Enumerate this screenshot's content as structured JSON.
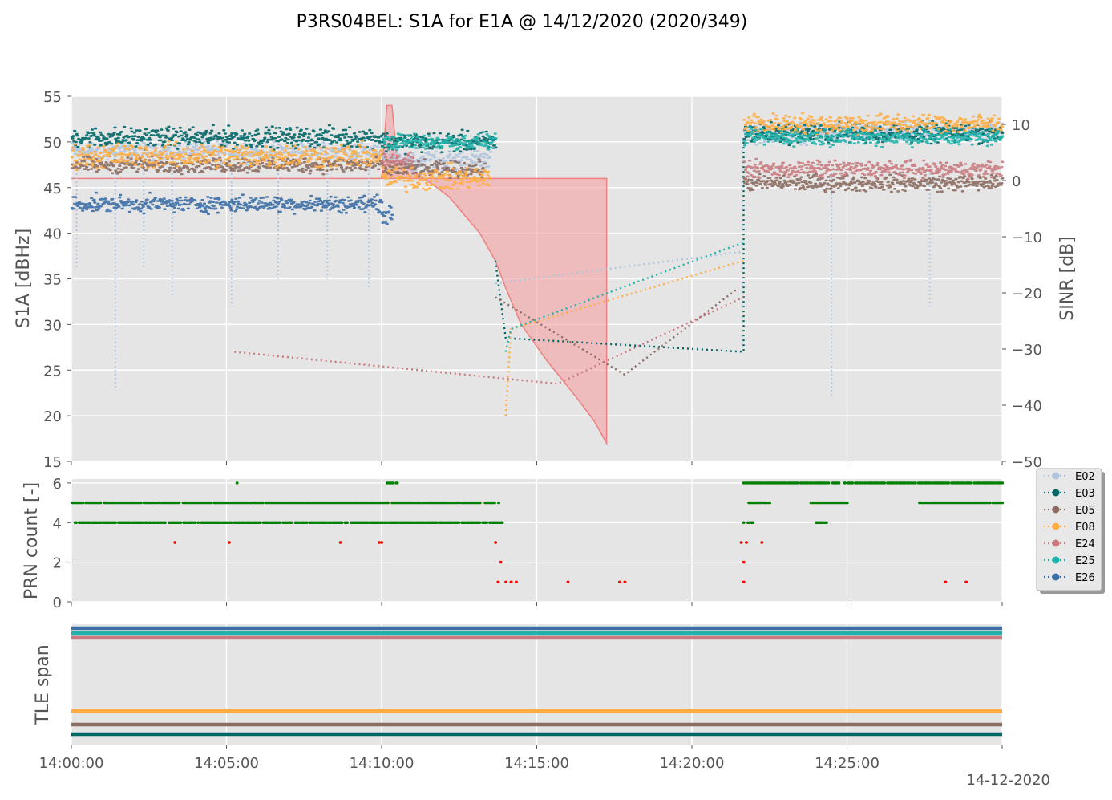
{
  "title": "P3RS04BEL: S1A for E1A @ 14/12/2020 (2020/349)",
  "date_label": "14-12-2020",
  "colors": {
    "panel_bg": "#e5e5e5",
    "grid": "#ffffff",
    "axis_text": "#555555",
    "sinr_fill": "#f4a0a0",
    "sinr_edge": "#f08080",
    "prn_count_good": "#008000",
    "prn_count_bad": "#ff0000"
  },
  "legend": [
    {
      "name": "E02",
      "color": "#b0c4de"
    },
    {
      "name": "E03",
      "color": "#006666"
    },
    {
      "name": "E05",
      "color": "#8c6d62"
    },
    {
      "name": "E08",
      "color": "#ffad42"
    },
    {
      "name": "E24",
      "color": "#c97a7e"
    },
    {
      "name": "E25",
      "color": "#20b2aa"
    },
    {
      "name": "E26",
      "color": "#3c6ea5"
    }
  ],
  "chart_data": [
    {
      "type": "scatter",
      "ylabel": "S1A [dBHz]",
      "y2label": "SINR [dB]",
      "xlim": [
        "14:00:00",
        "14:30:00"
      ],
      "ylim": [
        15,
        55
      ],
      "y2lim": [
        -50,
        15
      ],
      "yticks": [
        "15",
        "20",
        "25",
        "30",
        "35",
        "40",
        "45",
        "50",
        "55"
      ],
      "y2ticks": [
        "−50",
        "−40",
        "−30",
        "−20",
        "−10",
        "0",
        "10"
      ],
      "grid": true,
      "series": [
        {
          "name": "E02",
          "segments": [
            {
              "t0": "14:00:00",
              "t1": "14:10:00",
              "mean": 49,
              "noise": 1.0
            },
            {
              "t0": "14:10:00",
              "t1": "14:13:30",
              "mean": 48,
              "noise": 1.0
            },
            {
              "t0": "14:21:40",
              "t1": "14:30:00",
              "mean": 51,
              "noise": 1.0
            }
          ],
          "dips": [
            {
              "t": "14:00:10",
              "min": 36
            },
            {
              "t": "14:01:25",
              "min": 23
            },
            {
              "t": "14:02:20",
              "min": 36
            },
            {
              "t": "14:03:15",
              "min": 33
            },
            {
              "t": "14:05:10",
              "min": 32
            },
            {
              "t": "14:06:40",
              "min": 35
            },
            {
              "t": "14:08:15",
              "min": 35
            },
            {
              "t": "14:09:35",
              "min": 34
            },
            {
              "t": "14:24:30",
              "min": 22
            },
            {
              "t": "14:27:40",
              "min": 32
            }
          ],
          "tail": [
            [
              "14:13:40",
              34.5
            ],
            [
              "14:21:40",
              38
            ]
          ]
        },
        {
          "name": "E03",
          "segments": [
            {
              "t0": "14:00:00",
              "t1": "14:10:00",
              "mean": 50.5,
              "noise": 1.0
            },
            {
              "t0": "14:10:00",
              "t1": "14:13:40",
              "mean": 50,
              "noise": 1.0
            },
            {
              "t0": "14:21:40",
              "t1": "14:30:00",
              "mean": 51,
              "noise": 1.0
            }
          ],
          "tail": [
            [
              "14:13:40",
              37
            ],
            [
              "14:14:00",
              28.5
            ],
            [
              "14:21:40",
              27
            ],
            [
              "14:21:40",
              50
            ]
          ]
        },
        {
          "name": "E05",
          "segments": [
            {
              "t0": "14:00:00",
              "t1": "14:10:00",
              "mean": 47.5,
              "noise": 0.8
            },
            {
              "t0": "14:10:00",
              "t1": "14:13:20",
              "mean": 47,
              "noise": 0.8
            },
            {
              "t0": "14:21:40",
              "t1": "14:30:00",
              "mean": 45.5,
              "noise": 0.8
            }
          ],
          "tail": [
            [
              "14:13:40",
              33
            ],
            [
              "14:17:50",
              24.5
            ],
            [
              "14:21:30",
              34
            ]
          ]
        },
        {
          "name": "E08",
          "segments": [
            {
              "t0": "14:00:00",
              "t1": "14:10:00",
              "mean": 48.5,
              "noise": 1.2
            },
            {
              "t0": "14:10:00",
              "t1": "14:13:30",
              "mean": 46,
              "noise": 1.2
            },
            {
              "t0": "14:21:40",
              "t1": "14:30:00",
              "mean": 52,
              "noise": 1.0
            }
          ],
          "tail": [
            [
              "14:14:00",
              20
            ],
            [
              "14:14:10",
              29.5
            ],
            [
              "14:21:40",
              37
            ]
          ]
        },
        {
          "name": "E24",
          "segments": [
            {
              "t0": "14:10:00",
              "t1": "14:11:00",
              "mean": 48,
              "noise": 0.6
            },
            {
              "t0": "14:21:40",
              "t1": "14:30:00",
              "mean": 47,
              "noise": 0.8
            }
          ],
          "tail": [
            [
              "14:05:15",
              27
            ],
            [
              "14:15:40",
              23.5
            ],
            [
              "14:21:40",
              33
            ]
          ]
        },
        {
          "name": "E25",
          "segments": [
            {
              "t0": "14:10:00",
              "t1": "14:13:40",
              "mean": 50,
              "noise": 0.8
            },
            {
              "t0": "14:21:40",
              "t1": "14:30:00",
              "mean": 50.5,
              "noise": 0.8
            }
          ],
          "tail": [
            [
              "14:14:00",
              27
            ],
            [
              "14:14:10",
              29.5
            ],
            [
              "14:21:40",
              39
            ]
          ]
        },
        {
          "name": "E26",
          "segments": [
            {
              "t0": "14:00:00",
              "t1": "14:10:00",
              "mean": 43.2,
              "noise": 0.8
            },
            {
              "t0": "14:10:00",
              "t1": "14:10:20",
              "mean": 42,
              "noise": 0.8
            }
          ]
        }
      ],
      "sinr_envelope": [
        [
          "14:00:00",
          46
        ],
        [
          "14:10:00",
          46
        ],
        [
          "14:10:10",
          54
        ],
        [
          "14:10:20",
          54
        ],
        [
          "14:10:30",
          48
        ],
        [
          "14:11:00",
          46.8
        ],
        [
          "14:11:40",
          45.3
        ],
        [
          "14:12:10",
          44
        ],
        [
          "14:12:40",
          42
        ],
        [
          "14:13:10",
          40
        ],
        [
          "14:13:40",
          37
        ],
        [
          "14:14:00",
          34
        ],
        [
          "14:14:30",
          30
        ],
        [
          "14:15:20",
          26
        ],
        [
          "14:16:10",
          22.5
        ],
        [
          "14:16:50",
          19.5
        ],
        [
          "14:17:15",
          17
        ],
        [
          "14:17:15",
          46
        ],
        [
          "14:13:40",
          46
        ]
      ]
    },
    {
      "type": "scatter",
      "ylabel": "PRN count [-]",
      "xlim": [
        "14:00:00",
        "14:30:00"
      ],
      "ylim": [
        0,
        6.2
      ],
      "yticks": [
        "0",
        "2",
        "4",
        "6"
      ],
      "grid": true,
      "levels": [
        {
          "value": 6,
          "ranges": [
            [
              "14:05:20",
              "14:05:20"
            ],
            [
              "14:10:10",
              "14:10:30"
            ],
            [
              "14:21:40",
              "14:30:00"
            ]
          ],
          "color": "good"
        },
        {
          "value": 5,
          "ranges": [
            [
              "14:00:00",
              "14:13:50"
            ],
            [
              "14:21:50",
              "14:22:30"
            ],
            [
              "14:23:50",
              "14:25:00"
            ],
            [
              "14:27:20",
              "14:30:00"
            ]
          ],
          "color": "good"
        },
        {
          "value": 4,
          "ranges": [
            [
              "14:00:05",
              "14:13:55"
            ],
            [
              "14:21:40",
              "14:22:00"
            ],
            [
              "14:24:00",
              "14:24:20"
            ]
          ],
          "color": "good"
        },
        {
          "value": 3,
          "points": [
            "14:03:20",
            "14:05:05",
            "14:08:40",
            "14:09:55",
            "14:10:00",
            "14:13:40",
            "14:21:35",
            "14:21:45",
            "14:22:15"
          ],
          "color": "bad"
        },
        {
          "value": 2,
          "points": [
            "14:13:50",
            "14:21:40"
          ],
          "color": "bad"
        },
        {
          "value": 1,
          "points": [
            "14:13:45",
            "14:14:00",
            "14:14:10",
            "14:14:20",
            "14:16:00",
            "14:17:40",
            "14:17:50",
            "14:21:40",
            "14:28:10",
            "14:28:50"
          ],
          "color": "bad"
        }
      ]
    },
    {
      "type": "line",
      "ylabel": "TLE span",
      "xlim": [
        "14:00:00",
        "14:30:00"
      ],
      "xticks": [
        "14:00:00",
        "14:05:00",
        "14:10:00",
        "14:15:00",
        "14:20:00",
        "14:25:00"
      ],
      "grid": true,
      "series": [
        {
          "name": "E26",
          "level": 7
        },
        {
          "name": "E25",
          "level": 6
        },
        {
          "name": "E24",
          "level": 5
        },
        {
          "name": "E08",
          "level": 4
        },
        {
          "name": "E05",
          "level": 3
        },
        {
          "name": "E03",
          "level": 2
        }
      ]
    }
  ]
}
